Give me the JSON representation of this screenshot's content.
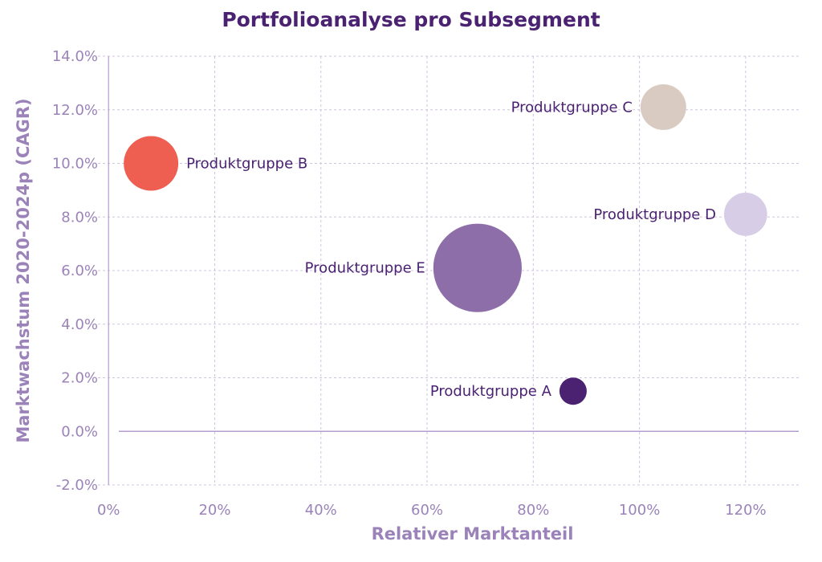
{
  "chart_data": {
    "type": "scatter",
    "title": "Portfolioanalyse pro Subsegment",
    "xlabel": "Relativer Marktanteil",
    "ylabel": "Marktwachstum 2020-2024p (CAGR)",
    "xlim": [
      -0.02,
      1.3
    ],
    "ylim": [
      -0.02,
      0.14
    ],
    "x_ticks": [
      0,
      0.2,
      0.4,
      0.6,
      0.8,
      1.0,
      1.2
    ],
    "x_tick_labels": [
      "0%",
      "20%",
      "40%",
      "60%",
      "80%",
      "100%",
      "120%"
    ],
    "y_ticks": [
      -0.02,
      0,
      0.02,
      0.04,
      0.06,
      0.08,
      0.1,
      0.12,
      0.14
    ],
    "y_tick_labels": [
      "-2.0%",
      "0.0%",
      "2.0%",
      "4.0%",
      "6.0%",
      "8.0%",
      "10.0%",
      "12.0%",
      "14.0%"
    ],
    "grid": true,
    "series": [
      {
        "name": "Produktgruppe A",
        "x": 0.875,
        "y": 0.015,
        "size": 1.0,
        "color": "#4b2272",
        "label_side": "left"
      },
      {
        "name": "Produktgruppe B",
        "x": 0.08,
        "y": 0.1,
        "size": 4.0,
        "color": "#ee5f52",
        "label_side": "right"
      },
      {
        "name": "Produktgruppe C",
        "x": 1.045,
        "y": 0.121,
        "size": 2.8,
        "color": "#d9cbc1",
        "label_side": "left"
      },
      {
        "name": "Produktgruppe D",
        "x": 1.2,
        "y": 0.081,
        "size": 2.5,
        "color": "#d7cde6",
        "label_side": "left"
      },
      {
        "name": "Produktgruppe E",
        "x": 0.695,
        "y": 0.061,
        "size": 10.5,
        "color": "#8e6ea9",
        "label_side": "left"
      }
    ]
  }
}
